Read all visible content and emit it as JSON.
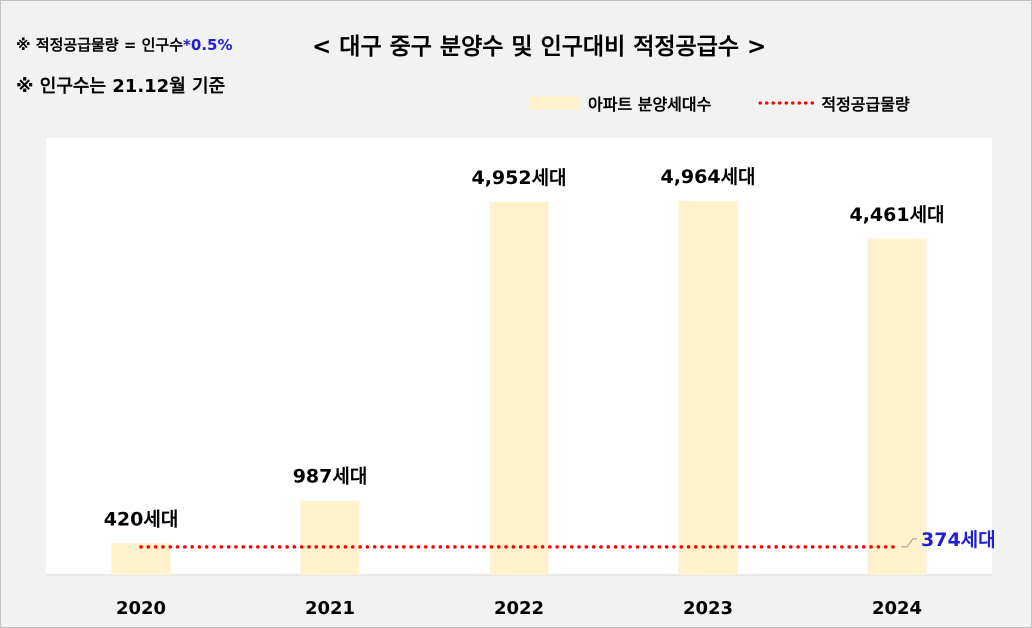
{
  "notes": {
    "formula_prefix": "※ 적정공급물량 = 인구수",
    "formula_accent": "*0.5%",
    "population_basis": "※ 인구수는 21.12월 기준"
  },
  "title": "< 대구 중구 분양수 및 인구대비 적정공급수 >",
  "legend": {
    "bar_label": "아파트 분양세대수",
    "line_label": "적정공급물량"
  },
  "colors": {
    "bar": "#fff2cc",
    "line": "#ff0000",
    "line_label": "#1f1fd6",
    "background": "#f2f2f2",
    "plot_background": "#ffffff"
  },
  "chart_data": {
    "type": "bar",
    "title": "< 대구 중구 분양수 및 인구대비 적정공급수 >",
    "categories": [
      "2020",
      "2021",
      "2022",
      "2023",
      "2024"
    ],
    "series": [
      {
        "name": "아파트 분양세대수",
        "type": "bar",
        "values": [
          420,
          987,
          4952,
          4964,
          4461
        ],
        "data_labels": [
          "420세대",
          "987세대",
          "4,952세대",
          "4,964세대",
          "4,461세대"
        ]
      },
      {
        "name": "적정공급물량",
        "type": "line",
        "style": "dotted",
        "values": [
          374,
          374,
          374,
          374,
          374
        ],
        "end_label": "374세대"
      }
    ],
    "ylim": [
      0,
      5800
    ],
    "grid": false,
    "legend_position": "top-right",
    "xlabel": "",
    "ylabel": ""
  }
}
